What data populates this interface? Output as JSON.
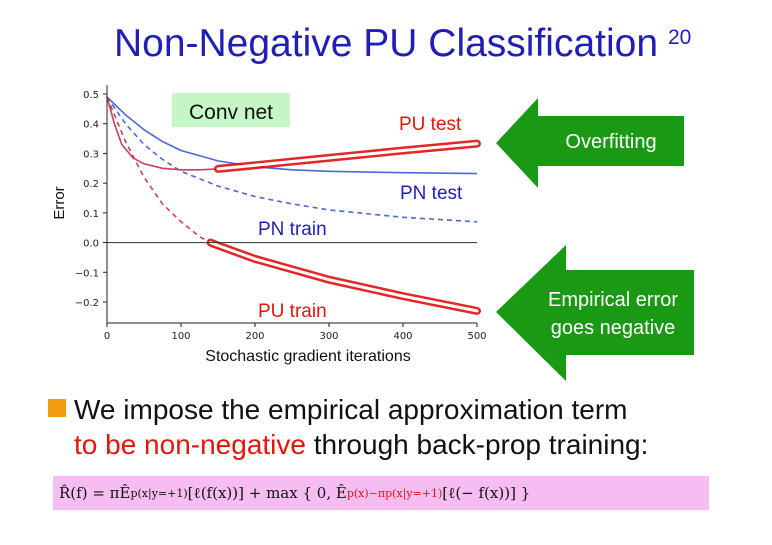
{
  "slide": {
    "title": "Non-Negative PU Classification",
    "page_number": "20",
    "bullet_line1": "We impose the empirical approximation term",
    "bullet_line2_red": "to be non-negative",
    "bullet_line2_rest": " through back-prop training:",
    "formula": {
      "lhs": "R̂(f) = πÊ",
      "sub1": "p(x|y=+1)",
      "mid": " [ℓ(f(x))] + max { 0,  Ê",
      "sub2": "p(x)−πp(x|y=+1)",
      "rhs": " [ℓ(− f(x))] }"
    }
  },
  "arrows": {
    "top_label": "Overfitting",
    "bottom_label_line1": "Empirical error",
    "bottom_label_line2": "goes negative",
    "color": "#1a9a14"
  },
  "chart_data": {
    "type": "line",
    "net_label": "Conv net",
    "xlabel": "Stochastic gradient iterations",
    "ylabel": "Error",
    "xlim": [
      0,
      500
    ],
    "ylim": [
      -0.26,
      0.52
    ],
    "x_ticks": [
      "0",
      "100",
      "200",
      "300",
      "400",
      "500"
    ],
    "y_ticks": [
      "0.5",
      "0.4",
      "0.3",
      "0.2",
      "0.1",
      "0.0",
      "−0.1",
      "−0.2"
    ],
    "annotations": [
      "PU test",
      "PN test",
      "PN train",
      "PU train"
    ],
    "colors": {
      "pn": "#4a6ad8",
      "pu": "#c8405a",
      "highlight": "#e01010",
      "label_red": "#e0180c",
      "label_blue": "#1f1fb8"
    },
    "series": [
      {
        "name": "PN test",
        "style": "solid",
        "color": "pn",
        "x": [
          0,
          25,
          50,
          75,
          100,
          150,
          200,
          250,
          300,
          400,
          500
        ],
        "y": [
          0.49,
          0.43,
          0.38,
          0.34,
          0.31,
          0.275,
          0.255,
          0.245,
          0.24,
          0.235,
          0.232
        ]
      },
      {
        "name": "PN train",
        "style": "dashed",
        "color": "pn",
        "x": [
          0,
          25,
          50,
          75,
          100,
          150,
          200,
          250,
          300,
          400,
          500
        ],
        "y": [
          0.49,
          0.4,
          0.33,
          0.28,
          0.24,
          0.19,
          0.155,
          0.13,
          0.11,
          0.085,
          0.07
        ]
      },
      {
        "name": "PU test",
        "style": "solid",
        "color": "pu",
        "x": [
          0,
          10,
          20,
          35,
          50,
          75,
          100,
          125,
          150,
          200,
          300,
          400,
          500
        ],
        "y": [
          0.49,
          0.4,
          0.33,
          0.285,
          0.265,
          0.25,
          0.245,
          0.245,
          0.248,
          0.26,
          0.285,
          0.31,
          0.333
        ]
      },
      {
        "name": "PU train",
        "style": "dashed",
        "color": "pu",
        "x": [
          0,
          25,
          50,
          75,
          100,
          125,
          140,
          150,
          200,
          250,
          300,
          400,
          500
        ],
        "y": [
          0.49,
          0.34,
          0.22,
          0.13,
          0.07,
          0.02,
          0.0,
          -0.01,
          -0.055,
          -0.09,
          -0.125,
          -0.18,
          -0.23
        ]
      }
    ]
  }
}
